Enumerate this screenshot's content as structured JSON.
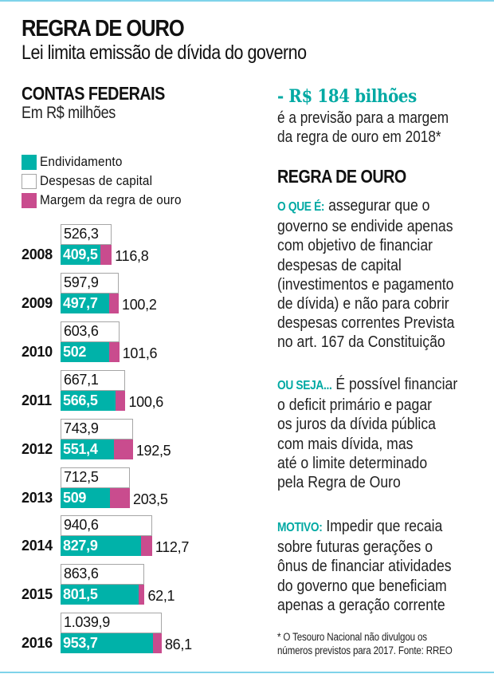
{
  "header": {
    "title": "REGRA DE OURO",
    "subtitle": "Lei limita emissão de dívida do governo"
  },
  "left": {
    "section_title": "CONTAS FEDERAIS",
    "section_subtitle": "Em R$ milhões"
  },
  "colors": {
    "debt": "#00b2a9",
    "capital_border": "#a6a6a6",
    "margin": "#c94c8e",
    "accent_text": "#00a9a3",
    "rule": "#7fd3ea"
  },
  "chart_data": {
    "type": "bar",
    "orientation": "horizontal",
    "title": "CONTAS FEDERAIS",
    "subtitle": "Em R$ milhões",
    "legend": [
      "Endividamento",
      "Despesas de capital",
      "Margem da regra de ouro"
    ],
    "legend_position": "top-left",
    "categories": [
      "2008",
      "2009",
      "2010",
      "2011",
      "2012",
      "2013",
      "2014",
      "2015",
      "2016"
    ],
    "series": [
      {
        "name": "Despesas de capital",
        "values": [
          526.3,
          597.9,
          603.6,
          667.1,
          743.9,
          712.5,
          940.6,
          863.6,
          1039.9
        ],
        "labels": [
          "526,3",
          "597,9",
          "603,6",
          "667,1",
          "743,9",
          "712,5",
          "940,6",
          "863,6",
          "1.039,9"
        ]
      },
      {
        "name": "Endividamento",
        "values": [
          409.5,
          497.7,
          502,
          566.5,
          551.4,
          509,
          827.9,
          801.5,
          953.7
        ],
        "labels": [
          "409,5",
          "497,7",
          "502",
          "566,5",
          "551,4",
          "509",
          "827,9",
          "801,5",
          "953,7"
        ]
      },
      {
        "name": "Margem da regra de ouro",
        "values": [
          116.8,
          100.2,
          101.6,
          100.6,
          192.5,
          203.5,
          112.7,
          62.1,
          86.1
        ],
        "labels": [
          "116,8",
          "100,2",
          "101,6",
          "100,6",
          "192,5",
          "203,5",
          "112,7",
          "62,1",
          "86,1"
        ]
      }
    ],
    "xlim": [
      0,
      1100
    ],
    "grid": false
  },
  "right": {
    "highlight_value": "- R$ 184 bilhões",
    "highlight_desc_1": "é a previsão para a margem",
    "highlight_desc_2": "da regra de ouro em 2018*",
    "section_title": "REGRA DE OURO",
    "paragraphs": [
      {
        "lead": "O QUE É:",
        "lines": [
          " assegurar que o",
          "governo se endivide apenas",
          "com objetivo de financiar",
          "despesas de capital",
          "(investimentos e pagamento",
          "de dívida) e não para cobrir",
          "despesas correntes Prevista",
          "no art. 167 da Constituição"
        ]
      },
      {
        "lead": "OU SEJA...",
        "lines": [
          " É possível financiar",
          "o deficit primário e pagar",
          "os juros da dívida pública",
          "com mais dívida, mas",
          "até o limite determinado",
          "pela Regra de Ouro"
        ]
      },
      {
        "lead": "MOTIVO:",
        "lines": [
          " Impedir que recaia",
          "sobre futuras gerações o",
          "ônus de financiar atividades",
          "do governo que beneficiam",
          "apenas a geração corrente"
        ]
      }
    ],
    "footnote_1": "* O Tesouro Nacional não divulgou os",
    "footnote_2": "números previstos para 2017. Fonte: RREO"
  }
}
